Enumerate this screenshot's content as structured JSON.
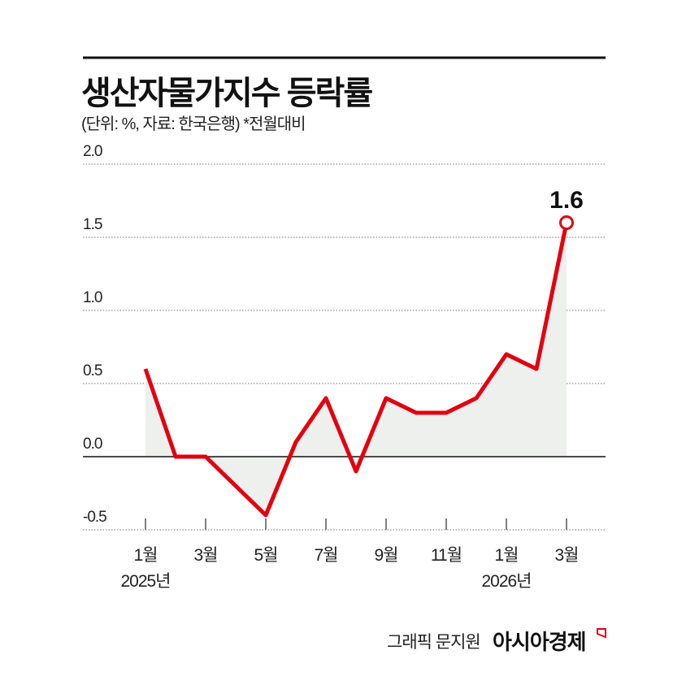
{
  "title": "생산자물가지수 등락률",
  "subtitle": "(단위: %, 자료: 한국은행)  *전월대비",
  "credit": "그래픽 문지원",
  "brand": "아시아경제",
  "chart_data": {
    "type": "area",
    "title": "생산자물가지수 등락률",
    "x": [
      "2025-01",
      "2025-02",
      "2025-03",
      "2025-04",
      "2025-05",
      "2025-06",
      "2025-07",
      "2025-08",
      "2025-09",
      "2025-10",
      "2025-11",
      "2025-12",
      "2026-01",
      "2026-02",
      "2026-03"
    ],
    "values": [
      0.6,
      0.0,
      0.0,
      -0.2,
      -0.4,
      0.1,
      0.4,
      -0.1,
      0.4,
      0.3,
      0.3,
      0.4,
      0.7,
      0.6,
      1.6
    ],
    "x_tick_labels": [
      {
        "month": "1월",
        "year": "2025년"
      },
      {
        "month": "3월"
      },
      {
        "month": "5월"
      },
      {
        "month": "7월"
      },
      {
        "month": "9월"
      },
      {
        "month": "11월"
      },
      {
        "month": "1월",
        "year": "2026년"
      },
      {
        "month": "3월"
      }
    ],
    "y_ticks": [
      "2.0",
      "1.5",
      "1.0",
      "0.5",
      "0.0",
      "-0.5"
    ],
    "ylim": [
      -0.5,
      2.0
    ],
    "annotation": "1.6",
    "grid": true,
    "colors": {
      "line": "#e3000f",
      "fill": "#eef0ee",
      "grid": "#777777"
    }
  }
}
